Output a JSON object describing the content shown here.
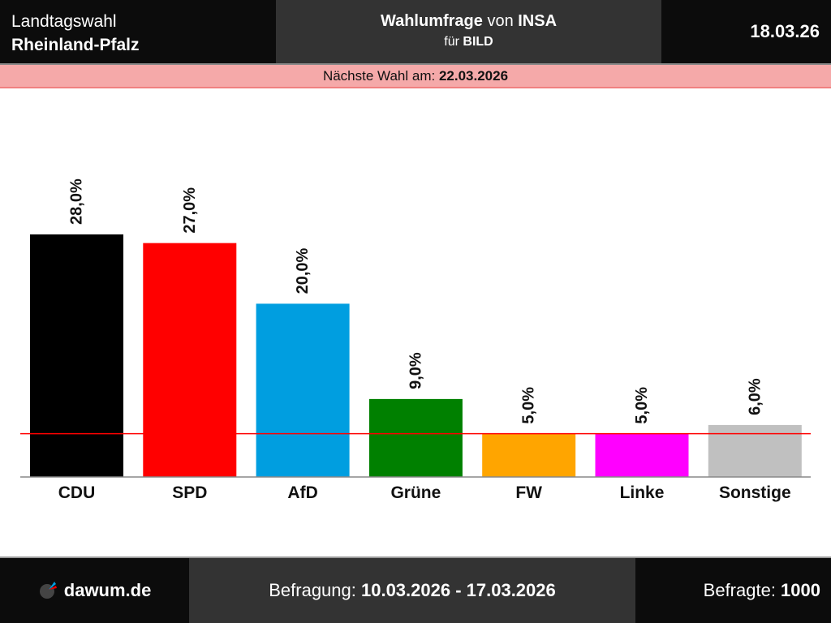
{
  "header": {
    "line1": "Landtagswahl",
    "line2": "Rheinland-Pfalz",
    "title_bold": "Wahlumfrage",
    "title_mid": " von ",
    "institute": "INSA",
    "client_pre": "für ",
    "client": "BILD",
    "date": "18.03.26"
  },
  "next_election": {
    "label": "Nächste Wahl am: ",
    "date": "22.03.2026"
  },
  "footer": {
    "brand": "dawum.de",
    "period_label": "Befragung: ",
    "period": "10.03.2026 - 17.03.2026",
    "sample_label": "Befragte: ",
    "sample": "1000"
  },
  "chart_data": {
    "type": "bar",
    "categories": [
      "CDU",
      "SPD",
      "AfD",
      "Grüne",
      "FW",
      "Linke",
      "Sonstige"
    ],
    "values": [
      28.0,
      27.0,
      20.0,
      9.0,
      5.0,
      5.0,
      6.0
    ],
    "labels": [
      "28,0%",
      "27,0%",
      "20,0%",
      "9,0%",
      "5,0%",
      "5,0%",
      "6,0%"
    ],
    "colors": [
      "#000000",
      "#ff0000",
      "#009ee0",
      "#008000",
      "#ffa500",
      "#ff00ff",
      "#c0c0c0"
    ],
    "threshold": 5.0,
    "threshold_color": "#ff0000",
    "ylim": [
      0,
      28
    ]
  }
}
